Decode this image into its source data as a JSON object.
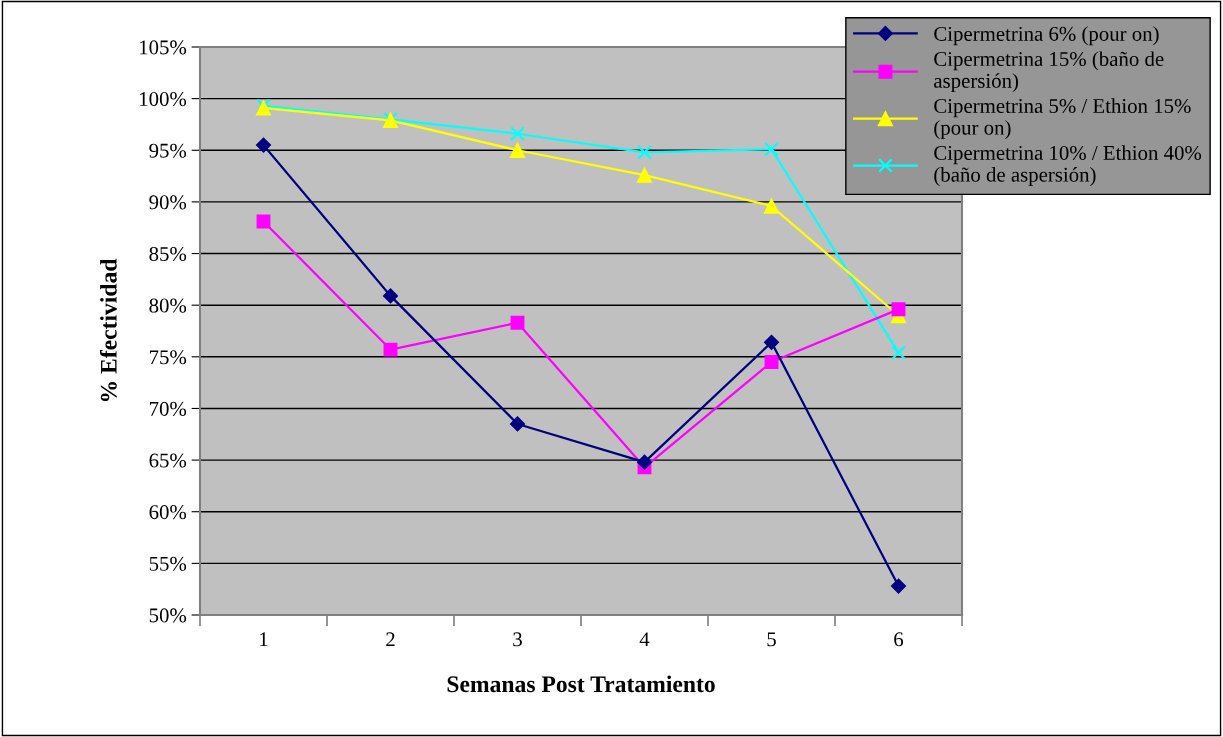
{
  "chart_data": {
    "type": "line",
    "xlabel": "Semanas Post Tratamiento",
    "ylabel": "% Efectividad",
    "categories": [
      "1",
      "2",
      "3",
      "4",
      "5",
      "6"
    ],
    "series": [
      {
        "name": "Cipermetrina 6% (pour on)",
        "color": "#000080",
        "marker": "diamond",
        "values": [
          95.5,
          80.9,
          68.5,
          64.8,
          76.4,
          52.8
        ]
      },
      {
        "name": "Cipermetrina 15% (baño de\naspersión)",
        "color": "#ff00ff",
        "marker": "square",
        "values": [
          88.1,
          75.7,
          78.3,
          64.3,
          74.5,
          79.6
        ]
      },
      {
        "name": "Cipermetrina 5% / Ethion 15%\n(pour on)",
        "color": "#ffff00",
        "marker": "triangle",
        "values": [
          99.1,
          97.9,
          95.0,
          92.6,
          89.6,
          79.0
        ]
      },
      {
        "name": "Cipermetrina 10% / Ethion 40%\n(baño de aspersión)",
        "color": "#00ffff",
        "marker": "cross",
        "values": [
          99.3,
          98.0,
          96.6,
          94.8,
          95.1,
          75.4
        ]
      }
    ],
    "ylim": [
      50,
      105
    ],
    "yticks": [
      {
        "value": 50,
        "label": "50%"
      },
      {
        "value": 55,
        "label": "55%"
      },
      {
        "value": 60,
        "label": "60%"
      },
      {
        "value": 65,
        "label": "65%"
      },
      {
        "value": 70,
        "label": "70%"
      },
      {
        "value": 75,
        "label": "75%"
      },
      {
        "value": 80,
        "label": "80%"
      },
      {
        "value": 85,
        "label": "85%"
      },
      {
        "value": 90,
        "label": "90%"
      },
      {
        "value": 95,
        "label": "95%"
      },
      {
        "value": 100,
        "label": "100%"
      },
      {
        "value": 105,
        "label": "105%"
      }
    ],
    "grid": "y",
    "legend": "top right",
    "line_style": "solid"
  }
}
